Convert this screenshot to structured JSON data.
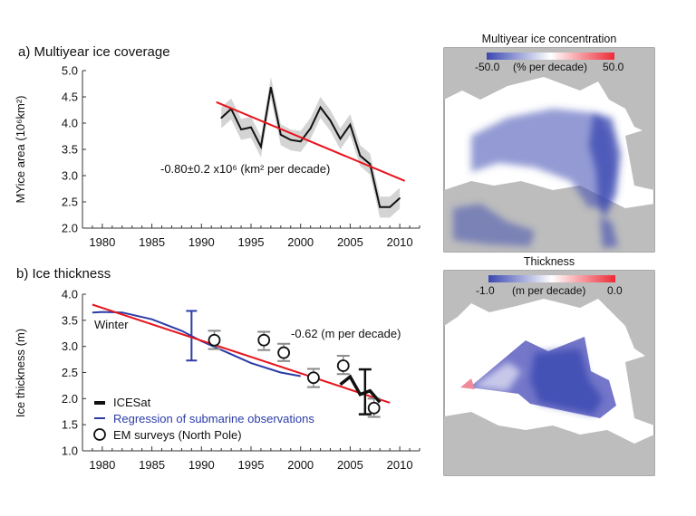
{
  "chart_data": [
    {
      "type": "line",
      "title": "a) Multiyear ice coverage",
      "ylabel": "MYice area (10⁶km²)",
      "xlabel": "",
      "xlim": [
        1978,
        2012
      ],
      "ylim": [
        2.0,
        5.0
      ],
      "xticks": [
        "1980",
        "1985",
        "1990",
        "1995",
        "2000",
        "2005",
        "2010"
      ],
      "yticks": [
        "2.0",
        "2.5",
        "3.0",
        "3.5",
        "4.0",
        "4.5",
        "5.0"
      ],
      "grid": false,
      "series": [
        {
          "kind": "line",
          "color": "#111111",
          "uncertainty_band": 0.2,
          "x": [
            1992,
            1993,
            1994,
            1995,
            1996,
            1997,
            1998,
            1999,
            2000,
            2001,
            2002,
            2003,
            2004,
            2005,
            2006,
            2007,
            2008,
            2009,
            2010
          ],
          "y": [
            4.1,
            4.27,
            3.88,
            3.92,
            3.55,
            4.68,
            3.78,
            3.68,
            3.65,
            3.9,
            4.3,
            4.05,
            3.7,
            3.97,
            3.38,
            3.22,
            2.4,
            2.4,
            2.57
          ]
        },
        {
          "kind": "trend",
          "color": "#e8131b",
          "x": [
            1991.5,
            2010.5
          ],
          "y": [
            4.4,
            2.9
          ]
        }
      ],
      "annotation": "-0.80±0.2 x10⁶ (km² per decade)"
    },
    {
      "type": "line",
      "title": "b) Ice thickness",
      "ylabel": "Ice thickness (m)",
      "xlabel": "",
      "xlim": [
        1978,
        2012
      ],
      "ylim": [
        1.0,
        4.0
      ],
      "xticks": [
        "1980",
        "1985",
        "1990",
        "1995",
        "2000",
        "2005",
        "2010"
      ],
      "yticks": [
        "1.0",
        "1.5",
        "2.0",
        "2.5",
        "3.0",
        "3.5",
        "4.0"
      ],
      "grid": false,
      "season_label": "Winter",
      "annotation": "-0.62 (m per decade)",
      "series": [
        {
          "name": "ICESat",
          "kind": "line",
          "color": "#111111",
          "x": [
            2004,
            2005,
            2006,
            2007,
            2008
          ],
          "y": [
            2.27,
            2.42,
            2.08,
            2.15,
            1.93
          ],
          "errorbar": {
            "x": 2006.5,
            "low": 1.7,
            "high": 2.56
          }
        },
        {
          "name": "Regression of submarine observations",
          "kind": "line",
          "color": "#2b3ca8",
          "x": [
            1979,
            1980,
            1982,
            1985,
            1988,
            1990,
            1993,
            1995,
            1998,
            2000
          ],
          "y": [
            3.65,
            3.66,
            3.65,
            3.52,
            3.3,
            3.1,
            2.85,
            2.68,
            2.5,
            2.43
          ],
          "errorbar": {
            "x": 1989,
            "low": 2.73,
            "high": 3.68
          }
        },
        {
          "name": "EM surveys (North Pole)",
          "kind": "points",
          "color": "#111111",
          "errorbar_color": "#8a8a8a",
          "x": [
            1991.3,
            1996.3,
            1998.3,
            2001.3,
            2004.3,
            2007.4
          ],
          "y": [
            3.12,
            3.12,
            2.88,
            2.4,
            2.63,
            1.82
          ],
          "low": [
            2.95,
            2.93,
            2.72,
            2.22,
            2.47,
            1.65
          ],
          "high": [
            3.3,
            3.28,
            3.05,
            2.57,
            2.82,
            2.0
          ]
        },
        {
          "kind": "trend",
          "color": "#e8131b",
          "x": [
            1979,
            2009
          ],
          "y": [
            3.8,
            1.92
          ]
        }
      ],
      "legend_placement": "bottom-left"
    }
  ],
  "maps": [
    {
      "title": "Multiyear ice concentration",
      "colorbar_min": "-50.0",
      "colorbar_max": "50.0",
      "colorbar_unit": "(% per decade)",
      "low_color": "#3a47b0",
      "high_color": "#ee2a36"
    },
    {
      "title": "Thickness",
      "colorbar_min": "-1.0",
      "colorbar_max": "0.0",
      "colorbar_unit": "(m per decade)",
      "low_color": "#3a47b0",
      "high_color": "#ee2a36"
    }
  ]
}
